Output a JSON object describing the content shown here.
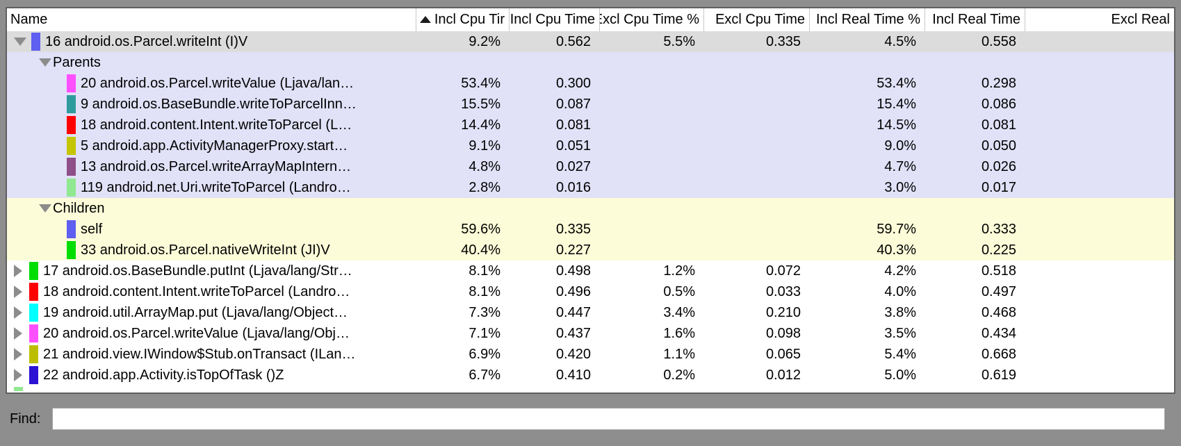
{
  "window": {
    "background": "#8e8e8e"
  },
  "table": {
    "header_background": "#ffffff",
    "columns": [
      {
        "label": "Name",
        "align": "left",
        "sort_icon": false
      },
      {
        "label": "Incl Cpu Tir",
        "align": "right",
        "sort_icon": true
      },
      {
        "label": "Incl Cpu Time",
        "align": "right",
        "sort_icon": false
      },
      {
        "label": "Excl Cpu Time %",
        "align": "right",
        "sort_icon": false
      },
      {
        "label": "Excl Cpu Time",
        "align": "right",
        "sort_icon": false
      },
      {
        "label": "Incl Real Time %",
        "align": "right",
        "sort_icon": false
      },
      {
        "label": "Incl Real Time",
        "align": "right",
        "sort_icon": false
      },
      {
        "label": "Excl Real",
        "align": "right",
        "sort_icon": false
      }
    ],
    "rows": [
      {
        "type": "root",
        "expanded": true,
        "chip": "#5f5ff1",
        "bg": "#dcdcdc",
        "name": "16 android.os.Parcel.writeInt (I)V",
        "values": [
          "9.2%",
          "0.562",
          "5.5%",
          "0.335",
          "4.5%",
          "0.558",
          ""
        ]
      },
      {
        "type": "section",
        "expanded": true,
        "chip": "",
        "bg": "#e1e1f8",
        "name": "Parents",
        "values": [
          "",
          "",
          "",
          "",
          "",
          "",
          ""
        ]
      },
      {
        "type": "sub",
        "chip": "#ff50ff",
        "bg": "#e1e1f8",
        "name": "20 android.os.Parcel.writeValue (Ljava/lan…",
        "values": [
          "53.4%",
          "0.300",
          "",
          "",
          "53.4%",
          "0.298",
          ""
        ]
      },
      {
        "type": "sub",
        "chip": "#2e9c9c",
        "bg": "#e1e1f8",
        "name": "9 android.os.BaseBundle.writeToParcelInn…",
        "values": [
          "15.5%",
          "0.087",
          "",
          "",
          "15.4%",
          "0.086",
          ""
        ]
      },
      {
        "type": "sub",
        "chip": "#ff0000",
        "bg": "#e1e1f8",
        "name": "18 android.content.Intent.writeToParcel (L…",
        "values": [
          "14.4%",
          "0.081",
          "",
          "",
          "14.5%",
          "0.081",
          ""
        ]
      },
      {
        "type": "sub",
        "chip": "#c4c400",
        "bg": "#e1e1f8",
        "name": "5 android.app.ActivityManagerProxy.start…",
        "values": [
          "9.1%",
          "0.051",
          "",
          "",
          "9.0%",
          "0.050",
          ""
        ]
      },
      {
        "type": "sub",
        "chip": "#8f4f88",
        "bg": "#e1e1f8",
        "name": "13 android.os.Parcel.writeArrayMapIntern…",
        "values": [
          "4.8%",
          "0.027",
          "",
          "",
          "4.7%",
          "0.026",
          ""
        ]
      },
      {
        "type": "sub",
        "chip": "#90e890",
        "bg": "#e1e1f8",
        "name": "119 android.net.Uri.writeToParcel (Landro…",
        "values": [
          "2.8%",
          "0.016",
          "",
          "",
          "3.0%",
          "0.017",
          ""
        ]
      },
      {
        "type": "section",
        "expanded": true,
        "chip": "",
        "bg": "#fcfcd9",
        "name": "Children",
        "values": [
          "",
          "",
          "",
          "",
          "",
          "",
          ""
        ]
      },
      {
        "type": "sub",
        "chip": "#5f5ff1",
        "bg": "#fcfcd9",
        "name": "self",
        "values": [
          "59.6%",
          "0.335",
          "",
          "",
          "59.7%",
          "0.333",
          ""
        ]
      },
      {
        "type": "sub",
        "chip": "#00dd00",
        "bg": "#fcfcd9",
        "name": "33 android.os.Parcel.nativeWriteInt (JI)V",
        "values": [
          "40.4%",
          "0.227",
          "",
          "",
          "40.3%",
          "0.225",
          ""
        ]
      },
      {
        "type": "root",
        "expanded": false,
        "chip": "#00dd00",
        "bg": "#ffffff",
        "name": "17 android.os.BaseBundle.putInt (Ljava/lang/Str…",
        "values": [
          "8.1%",
          "0.498",
          "1.2%",
          "0.072",
          "4.2%",
          "0.518",
          ""
        ]
      },
      {
        "type": "root",
        "expanded": false,
        "chip": "#ff0000",
        "bg": "#ffffff",
        "name": "18 android.content.Intent.writeToParcel (Landro…",
        "values": [
          "8.1%",
          "0.496",
          "0.5%",
          "0.033",
          "4.0%",
          "0.497",
          ""
        ]
      },
      {
        "type": "root",
        "expanded": false,
        "chip": "#00ffff",
        "bg": "#ffffff",
        "name": "19 android.util.ArrayMap.put (Ljava/lang/Object…",
        "values": [
          "7.3%",
          "0.447",
          "3.4%",
          "0.210",
          "3.8%",
          "0.468",
          ""
        ]
      },
      {
        "type": "root",
        "expanded": false,
        "chip": "#ff50ff",
        "bg": "#ffffff",
        "name": "20 android.os.Parcel.writeValue (Ljava/lang/Obj…",
        "values": [
          "7.1%",
          "0.437",
          "1.6%",
          "0.098",
          "3.5%",
          "0.434",
          ""
        ]
      },
      {
        "type": "root",
        "expanded": false,
        "chip": "#bdbd00",
        "bg": "#ffffff",
        "name": "21 android.view.IWindow$Stub.onTransact (ILan…",
        "values": [
          "6.9%",
          "0.420",
          "1.1%",
          "0.065",
          "5.4%",
          "0.668",
          ""
        ]
      },
      {
        "type": "root",
        "expanded": false,
        "chip": "#2c12d4",
        "bg": "#ffffff",
        "name": "22 android.app.Activity.isTopOfTask ()Z",
        "values": [
          "6.7%",
          "0.410",
          "0.2%",
          "0.012",
          "5.0%",
          "0.619",
          ""
        ]
      },
      {
        "type": "partial",
        "chip": "#90e890",
        "bg": "#ffffff",
        "name": "",
        "values": [
          "",
          "",
          "",
          "",
          "",
          "",
          ""
        ]
      }
    ]
  },
  "find": {
    "label": "Find:",
    "value": ""
  },
  "colors": {
    "selected_row": "#dcdcdc",
    "parents_section": "#e1e1f8",
    "children_section": "#fcfcd9",
    "frame": "#8e8e8e"
  }
}
